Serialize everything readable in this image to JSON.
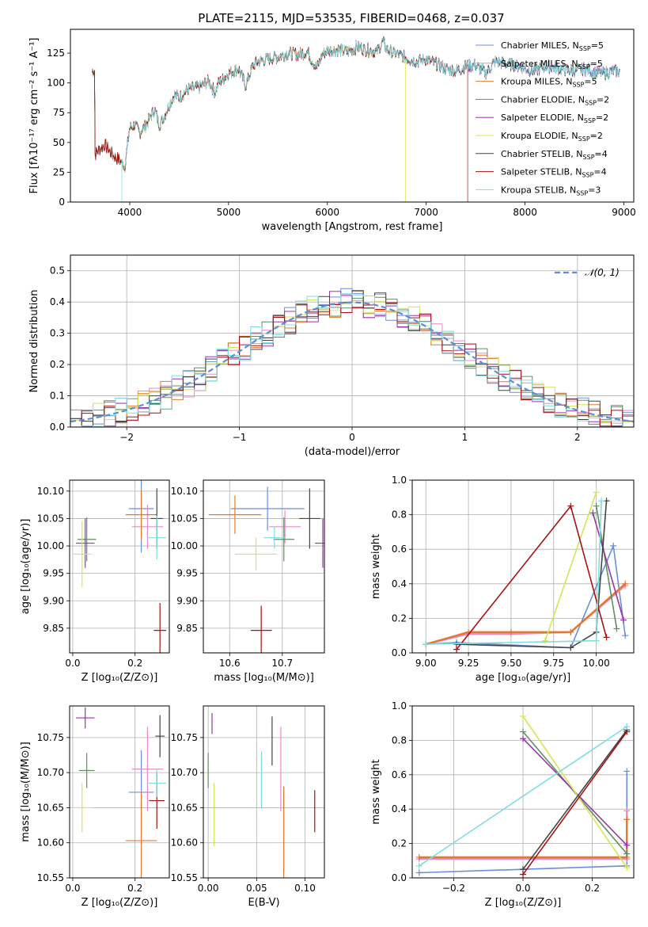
{
  "title": "PLATE=2115, MJD=53535, FIBERID=0468, z=0.037",
  "colors": {
    "chabrier_miles": "#6a8fd8",
    "salpeter_miles": "#e88bc6",
    "kroupa_miles": "#e07a2e",
    "chabrier_elodie": "#5f8f5f",
    "salpeter_elodie": "#9a35a8",
    "kroupa_elodie": "#d6e552",
    "chabrier_stelib": "#444444",
    "salpeter_stelib": "#a81010",
    "kroupa_stelib": "#7fdde0",
    "normal": "#5b8fd6",
    "grid": "#b0b0b0"
  },
  "legend_spectrum": [
    {
      "key": "chabrier_miles",
      "label": "Chabrier MILES, N",
      "sub": "SSP",
      "tail": "=5"
    },
    {
      "key": "salpeter_miles",
      "label": "Salpeter MILES, N",
      "sub": "SSP",
      "tail": "=5"
    },
    {
      "key": "kroupa_miles",
      "label": "Kroupa MILES, N",
      "sub": "SSP",
      "tail": "=5"
    },
    {
      "key": "chabrier_elodie",
      "label": "Chabrier ELODIE, N",
      "sub": "SSP",
      "tail": "=2"
    },
    {
      "key": "salpeter_elodie",
      "label": "Salpeter ELODIE, N",
      "sub": "SSP",
      "tail": "=2"
    },
    {
      "key": "kroupa_elodie",
      "label": "Kroupa ELODIE, N",
      "sub": "SSP",
      "tail": "=2"
    },
    {
      "key": "chabrier_stelib",
      "label": "Chabrier STELIB, N",
      "sub": "SSP",
      "tail": "=4"
    },
    {
      "key": "salpeter_stelib",
      "label": "Salpeter STELIB, N",
      "sub": "SSP",
      "tail": "=4"
    },
    {
      "key": "kroupa_stelib",
      "label": "Kroupa STELIB, N",
      "sub": "SSP",
      "tail": "=3"
    }
  ],
  "legend_hist": "𝒩(0, 1)",
  "chart_data": [
    {
      "id": "spectrum",
      "type": "line",
      "xlabel": "wavelength [Angstrom, rest frame]",
      "ylabel": "Flux [fλ10⁻¹⁷ erg cm⁻² s⁻¹ A⁻¹]",
      "xlim": [
        3400,
        9100
      ],
      "ylim": [
        0,
        145
      ],
      "xticks": [
        4000,
        5000,
        6000,
        7000,
        8000,
        9000
      ],
      "yticks": [
        0,
        25,
        50,
        75,
        100,
        125
      ],
      "grid": false,
      "legend": "right",
      "spectrum_x": [
        3650,
        3700,
        3750,
        3800,
        3850,
        3900,
        3950,
        4000,
        4050,
        4100,
        4150,
        4200,
        4250,
        4300,
        4350,
        4400,
        4450,
        4500,
        4600,
        4700,
        4800,
        4861,
        4900,
        5000,
        5100,
        5175,
        5250,
        5300,
        5400,
        5500,
        5600,
        5700,
        5800,
        5890,
        5950,
        6000,
        6100,
        6200,
        6300,
        6400,
        6500,
        6563,
        6600,
        6700,
        6800,
        6900,
        7000,
        7100,
        7200,
        7300,
        7400,
        7500,
        7600,
        7700,
        7800,
        7900,
        8000,
        8100,
        8200,
        8300,
        8400,
        8500,
        8600,
        8700,
        8800,
        8900
      ],
      "spectrum_y": [
        40,
        45,
        48,
        42,
        38,
        35,
        30,
        62,
        65,
        58,
        63,
        70,
        78,
        65,
        72,
        82,
        90,
        88,
        95,
        96,
        102,
        92,
        100,
        108,
        112,
        98,
        115,
        118,
        120,
        122,
        125,
        124,
        126,
        112,
        124,
        127,
        128,
        126,
        130,
        128,
        126,
        135,
        128,
        124,
        121,
        118,
        120,
        116,
        112,
        110,
        114,
        115,
        108,
        118,
        116,
        115,
        112,
        110,
        114,
        113,
        111,
        110,
        112,
        109,
        108,
        110
      ],
      "dropouts": [
        {
          "series": "kroupa_elodie",
          "x": 6790
        },
        {
          "series": "salpeter_stelib",
          "x": 7420
        },
        {
          "series": "kroupa_stelib",
          "x": 3920
        }
      ]
    },
    {
      "id": "residuals",
      "type": "histogram",
      "xlabel": "(data-model)/error",
      "ylabel": "Normed distribution",
      "xlim": [
        -2.5,
        2.5
      ],
      "ylim": [
        0,
        0.55
      ],
      "xticks": [
        -2,
        -1,
        0,
        1,
        2
      ],
      "yticks": [
        0.0,
        0.1,
        0.2,
        0.3,
        0.4,
        0.5
      ],
      "grid": true,
      "legend": "top-right",
      "bin_width": 0.1,
      "reference": {
        "name": "𝒩(0, 1)",
        "mean": 0,
        "sigma": 1
      }
    },
    {
      "id": "age_vs_Z",
      "type": "scatter",
      "xlabel": "Z [log₁₀(Z/Z⊙)]",
      "ylabel": "age  [log₁₀(age/yr)]",
      "xlim": [
        -0.01,
        0.31
      ],
      "ylim": [
        9.805,
        10.12
      ],
      "xticks": [
        0.0,
        0.2
      ],
      "yticks": [
        9.85,
        9.9,
        9.95,
        10.0,
        10.05,
        10.1
      ],
      "grid": true,
      "points": [
        {
          "series": "chabrier_miles",
          "x": 0.22,
          "y": 10.068,
          "xerr": 0.04,
          "yerr": 0.08
        },
        {
          "series": "salpeter_miles",
          "x": 0.24,
          "y": 10.035,
          "xerr": 0.05,
          "yerr": 0.04
        },
        {
          "series": "kroupa_miles",
          "x": 0.22,
          "y": 10.057,
          "xerr": 0.05,
          "yerr": 0.045
        },
        {
          "series": "chabrier_elodie",
          "x": 0.045,
          "y": 10.012,
          "xerr": 0.03,
          "yerr": 0.04
        },
        {
          "series": "salpeter_elodie",
          "x": 0.04,
          "y": 10.005,
          "xerr": 0.03,
          "yerr": 0.045
        },
        {
          "series": "kroupa_elodie",
          "x": 0.03,
          "y": 9.985,
          "xerr": 0.03,
          "yerr": 0.06
        },
        {
          "series": "chabrier_stelib",
          "x": 0.27,
          "y": 10.05,
          "xerr": 0.02,
          "yerr": 0.055
        },
        {
          "series": "salpeter_stelib",
          "x": 0.28,
          "y": 9.846,
          "xerr": 0.02,
          "yerr": 0.05
        },
        {
          "series": "kroupa_stelib",
          "x": 0.27,
          "y": 10.015,
          "xerr": 0.03,
          "yerr": 0.04
        }
      ]
    },
    {
      "id": "age_vs_mass",
      "type": "scatter",
      "xlabel": "mass [log₁₀(M/M⊙)]",
      "ylabel": "",
      "xlim": [
        10.55,
        10.78
      ],
      "ylim": [
        9.805,
        10.12
      ],
      "xticks": [
        10.6,
        10.7
      ],
      "yticks": [
        9.85,
        9.9,
        9.95,
        10.0,
        10.05,
        10.1
      ],
      "grid": true,
      "points": [
        {
          "series": "chabrier_miles",
          "x": 10.672,
          "y": 10.068,
          "xerr": 0.07,
          "yerr": 0.04
        },
        {
          "series": "salpeter_miles",
          "x": 10.705,
          "y": 10.035,
          "xerr": 0.03,
          "yerr": 0.03
        },
        {
          "series": "kroupa_miles",
          "x": 10.61,
          "y": 10.057,
          "xerr": 0.05,
          "yerr": 0.035
        },
        {
          "series": "chabrier_elodie",
          "x": 10.703,
          "y": 10.012,
          "xerr": 0.02,
          "yerr": 0.04
        },
        {
          "series": "salpeter_elodie",
          "x": 10.777,
          "y": 10.005,
          "xerr": 0.015,
          "yerr": 0.045
        },
        {
          "series": "kroupa_elodie",
          "x": 10.65,
          "y": 9.985,
          "xerr": 0.04,
          "yerr": 0.03
        },
        {
          "series": "chabrier_stelib",
          "x": 10.752,
          "y": 10.05,
          "xerr": 0.02,
          "yerr": 0.055
        },
        {
          "series": "salpeter_stelib",
          "x": 10.66,
          "y": 9.846,
          "xerr": 0.02,
          "yerr": 0.045
        },
        {
          "series": "kroupa_stelib",
          "x": 10.685,
          "y": 10.015,
          "xerr": 0.02,
          "yerr": 0.02
        }
      ]
    },
    {
      "id": "weight_vs_age",
      "type": "line",
      "xlabel": "age  [log₁₀(age/yr)]",
      "ylabel": "mass weight",
      "xlim": [
        8.92,
        10.22
      ],
      "ylim": [
        0,
        1
      ],
      "xticks": [
        9.0,
        9.25,
        9.5,
        9.75,
        10.0
      ],
      "yticks": [
        0.0,
        0.2,
        0.4,
        0.6,
        0.8,
        1.0
      ],
      "grid": true,
      "series": [
        {
          "key": "chabrier_miles",
          "x": [
            9.0,
            9.18,
            9.85,
            10.1,
            10.17
          ],
          "y": [
            0.05,
            0.06,
            0.03,
            0.62,
            0.1
          ]
        },
        {
          "key": "salpeter_miles",
          "x": [
            9.0,
            9.25,
            9.5,
            9.85,
            10.17
          ],
          "y": [
            0.05,
            0.11,
            0.11,
            0.12,
            0.39
          ]
        },
        {
          "key": "kroupa_miles",
          "x": [
            9.0,
            9.25,
            9.5,
            9.85,
            10.17
          ],
          "y": [
            0.05,
            0.12,
            0.12,
            0.12,
            0.4
          ]
        },
        {
          "key": "chabrier_elodie",
          "x": [
            10.0,
            10.12
          ],
          "y": [
            0.85,
            0.14
          ]
        },
        {
          "key": "salpeter_elodie",
          "x": [
            9.98,
            10.16
          ],
          "y": [
            0.81,
            0.19
          ]
        },
        {
          "key": "kroupa_elodie",
          "x": [
            9.7,
            10.0
          ],
          "y": [
            0.07,
            0.93
          ]
        },
        {
          "key": "chabrier_stelib",
          "x": [
            9.18,
            9.85,
            10.0,
            10.06
          ],
          "y": [
            0.05,
            0.03,
            0.12,
            0.88
          ]
        },
        {
          "key": "salpeter_stelib",
          "x": [
            9.18,
            9.85,
            10.06
          ],
          "y": [
            0.02,
            0.85,
            0.09
          ]
        },
        {
          "key": "kroupa_stelib",
          "x": [
            9.0,
            10.0,
            10.03
          ],
          "y": [
            0.05,
            0.07,
            0.88
          ]
        }
      ]
    },
    {
      "id": "mass_vs_Z",
      "type": "scatter",
      "xlabel": "Z [log₁₀(Z/Z⊙)]",
      "ylabel": "mass [log₁₀(M/M⊙)]",
      "xlim": [
        -0.01,
        0.31
      ],
      "ylim": [
        10.55,
        10.795
      ],
      "xticks": [
        0.0,
        0.2
      ],
      "yticks": [
        10.55,
        10.6,
        10.65,
        10.7,
        10.75
      ],
      "grid": true,
      "points": [
        {
          "series": "chabrier_miles",
          "x": 0.22,
          "y": 10.672,
          "xerr": 0.04,
          "yerr": 0.06
        },
        {
          "series": "salpeter_miles",
          "x": 0.24,
          "y": 10.705,
          "xerr": 0.05,
          "yerr": 0.06
        },
        {
          "series": "kroupa_miles",
          "x": 0.22,
          "y": 10.603,
          "xerr": 0.05,
          "yerr": 0.07
        },
        {
          "series": "chabrier_elodie",
          "x": 0.045,
          "y": 10.703,
          "xerr": 0.025,
          "yerr": 0.025
        },
        {
          "series": "salpeter_elodie",
          "x": 0.04,
          "y": 10.778,
          "xerr": 0.03,
          "yerr": 0.015
        },
        {
          "series": "kroupa_elodie",
          "x": 0.03,
          "y": 10.65,
          "xerr": 0.035,
          "yerr": 0.035
        },
        {
          "series": "chabrier_stelib",
          "x": 0.28,
          "y": 10.752,
          "xerr": 0.015,
          "yerr": 0.03
        },
        {
          "series": "salpeter_stelib",
          "x": 0.27,
          "y": 10.66,
          "xerr": 0.025,
          "yerr": 0.04
        },
        {
          "series": "kroupa_stelib",
          "x": 0.27,
          "y": 10.685,
          "xerr": 0.03,
          "yerr": 0.02
        }
      ]
    },
    {
      "id": "mass_vs_ebv",
      "type": "scatter",
      "xlabel": "E(B-V)",
      "ylabel": "",
      "xlim": [
        -0.005,
        0.12
      ],
      "ylim": [
        10.55,
        10.795
      ],
      "xticks": [
        0.0,
        0.05,
        0.1
      ],
      "yticks": [
        10.55,
        10.6,
        10.65,
        10.7,
        10.75
      ],
      "grid": true,
      "points": [
        {
          "series": "chabrier_miles",
          "x": 0.078,
          "y": 10.62,
          "xerr": 0,
          "yerr": 0.06
        },
        {
          "series": "salpeter_miles",
          "x": 0.075,
          "y": 10.705,
          "xerr": 0,
          "yerr": 0.06
        },
        {
          "series": "kroupa_miles",
          "x": 0.078,
          "y": 10.61,
          "xerr": 0,
          "yerr": 0.07
        },
        {
          "series": "chabrier_elodie",
          "x": 0.0,
          "y": 10.703,
          "xerr": 0,
          "yerr": 0.025
        },
        {
          "series": "salpeter_elodie",
          "x": 0.004,
          "y": 10.77,
          "xerr": 0,
          "yerr": 0.015
        },
        {
          "series": "kroupa_elodie",
          "x": 0.006,
          "y": 10.64,
          "xerr": 0,
          "yerr": 0.045
        },
        {
          "series": "chabrier_stelib",
          "x": 0.066,
          "y": 10.745,
          "xerr": 0,
          "yerr": 0.035
        },
        {
          "series": "salpeter_stelib",
          "x": 0.11,
          "y": 10.645,
          "xerr": 0,
          "yerr": 0.03
        },
        {
          "series": "kroupa_stelib",
          "x": 0.055,
          "y": 10.69,
          "xerr": 0,
          "yerr": 0.04
        }
      ]
    },
    {
      "id": "weight_vs_Z",
      "type": "line",
      "xlabel": "Z [log₁₀(Z/Z⊙)]",
      "ylabel": "mass weight",
      "xlim": [
        -0.32,
        0.32
      ],
      "ylim": [
        0,
        1
      ],
      "xticks": [
        -0.2,
        0.0,
        0.2
      ],
      "yticks": [
        0.0,
        0.2,
        0.4,
        0.6,
        0.8,
        1.0
      ],
      "grid": true,
      "series": [
        {
          "key": "chabrier_miles",
          "x": [
            -0.3,
            0.3,
            0.3
          ],
          "y": [
            0.03,
            0.07,
            0.62
          ]
        },
        {
          "key": "salpeter_miles",
          "x": [
            -0.3,
            0.3,
            0.3
          ],
          "y": [
            0.11,
            0.11,
            0.39
          ]
        },
        {
          "key": "kroupa_miles",
          "x": [
            -0.3,
            0.3,
            0.3
          ],
          "y": [
            0.12,
            0.12,
            0.34
          ]
        },
        {
          "key": "chabrier_elodie",
          "x": [
            0.0,
            0.3
          ],
          "y": [
            0.85,
            0.14
          ]
        },
        {
          "key": "salpeter_elodie",
          "x": [
            0.0,
            0.3
          ],
          "y": [
            0.81,
            0.19
          ]
        },
        {
          "key": "kroupa_elodie",
          "x": [
            0.0,
            0.3
          ],
          "y": [
            0.94,
            0.06
          ]
        },
        {
          "key": "chabrier_stelib",
          "x": [
            0.0,
            0.3
          ],
          "y": [
            0.05,
            0.86
          ]
        },
        {
          "key": "salpeter_stelib",
          "x": [
            0.0,
            0.3
          ],
          "y": [
            0.02,
            0.85
          ]
        },
        {
          "key": "kroupa_stelib",
          "x": [
            -0.3,
            0.3
          ],
          "y": [
            0.07,
            0.88
          ]
        }
      ]
    }
  ]
}
